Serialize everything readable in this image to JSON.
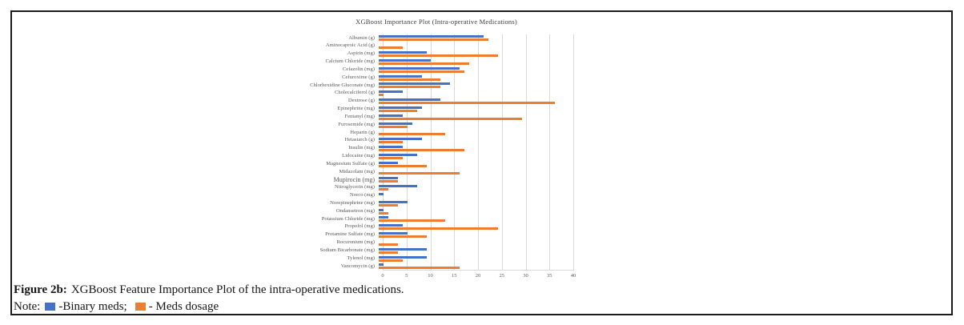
{
  "page": {
    "background": "#ffffff",
    "frame_border_color": "#1b1b1b"
  },
  "caption": {
    "label": "Figure 2b:",
    "text": "XGBoost Feature Importance Plot of the intra-operative medications.",
    "note": {
      "label": "Note:",
      "binary_label": "-Binary meds;",
      "dosage_label": "- Meds dosage"
    }
  },
  "chart_data": {
    "type": "bar",
    "orientation": "horizontal",
    "title": "XGBoost Importance Plot (Intra-operative Medications)",
    "xlabel": "",
    "ylabel": "",
    "xlim": [
      0,
      40
    ],
    "xticks": [
      0,
      5,
      10,
      15,
      20,
      25,
      30,
      35,
      40
    ],
    "grid": true,
    "legend_position": "below-figure-note",
    "title_color": "#404040",
    "axis_text_color": "#595959",
    "gridline_color": "#d9d9d9",
    "emphasized_category": "Mupirocin (mg)",
    "categories": [
      "Albumin (g)",
      "Aminocaproic Acid (g)",
      "Aspirin (mg)",
      "Calcium Chloride (mg)",
      "Cefazolin (mg)",
      "Cefuroxime (g)",
      "Chlorhexidine Gluconate (mg)",
      "Cholecalciferol (g)",
      "Dextrose (g)",
      "Epinephrine (mg)",
      "Fentanyl (mg)",
      "Furosemide (mg)",
      "Heparin (g)",
      "Hetastarch (g)",
      "Insulin (mg)",
      "Lidocaine (mg)",
      "Magnesium Sulfate (g)",
      "Midazolam (mg)",
      "Mupirocin (mg)",
      "Nitroglycerin (mg)",
      "Norco (mg)",
      "Norepinephrine (mg)",
      "Ondansetron (mg)",
      "Potassium Chloride (mg)",
      "Propofol (mg)",
      "Protamine Sulfate (mg)",
      "Rocuronium (mg)",
      "Sodium Bicarbonate (mg)",
      "Tylenol (mg)",
      "Vancomycin (g)"
    ],
    "series": [
      {
        "name": "Binary meds",
        "color": "#4472C4",
        "values": [
          22,
          0,
          10,
          11,
          17,
          9,
          15,
          5,
          13,
          9,
          5,
          7,
          0,
          9,
          5,
          8,
          4,
          0,
          4,
          8,
          1,
          6,
          1,
          2,
          5,
          6,
          0,
          10,
          10,
          1
        ]
      },
      {
        "name": "Meds dosage",
        "color": "#ED7D31",
        "values": [
          23,
          5,
          25,
          19,
          18,
          13,
          13,
          1,
          37,
          8,
          30,
          6,
          14,
          5,
          18,
          5,
          10,
          17,
          4,
          2,
          0,
          4,
          2,
          14,
          25,
          10,
          4,
          4,
          5,
          17
        ]
      }
    ]
  }
}
